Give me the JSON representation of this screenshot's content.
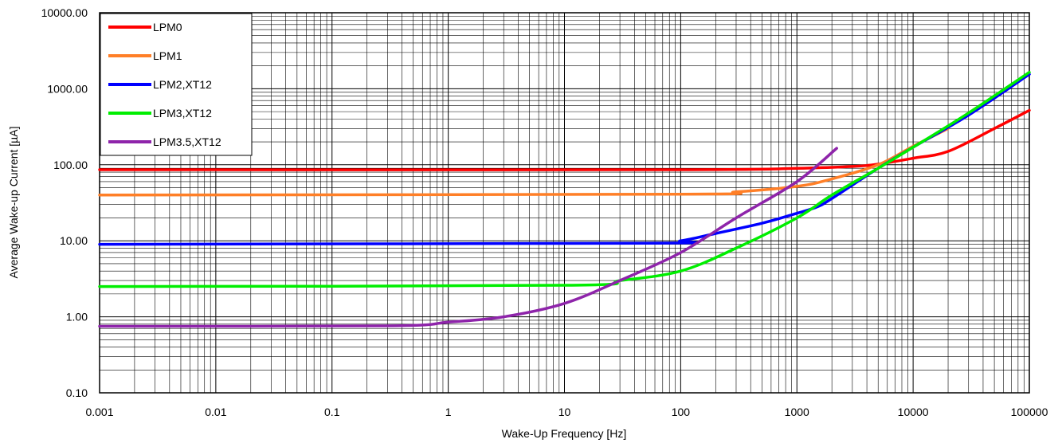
{
  "chart_data": {
    "type": "line",
    "title": "",
    "xlabel": "Wake-Up Frequency [Hz]",
    "ylabel": "Average Wake-up Current [µA]",
    "x_scale": "log",
    "y_scale": "log",
    "xlim": [
      0.001,
      100000
    ],
    "ylim": [
      0.1,
      10000
    ],
    "x_ticks": [
      "0.001",
      "0.01",
      "0.1",
      "1",
      "10",
      "100",
      "1000",
      "10000",
      "100000"
    ],
    "y_ticks": [
      "0.10",
      "1.00",
      "10.00",
      "100.00",
      "1000.00",
      "10000.00"
    ],
    "grid": true,
    "legend_position": "top-left",
    "series": [
      {
        "name": "LPM0",
        "color": "#ff0000",
        "points": [
          [
            0.001,
            86
          ],
          [
            100,
            86
          ],
          [
            1000,
            90
          ],
          [
            3000,
            95
          ],
          [
            5000,
            102
          ],
          [
            10000,
            122
          ],
          [
            20000,
            150
          ],
          [
            50000,
            300
          ],
          [
            100000,
            520
          ]
        ]
      },
      {
        "name": "LPM1",
        "color": "#ff7f27",
        "points": [
          [
            0.001,
            40
          ],
          [
            100,
            41
          ],
          [
            300,
            44
          ],
          [
            1000,
            52
          ],
          [
            2000,
            65
          ],
          [
            5000,
            100
          ],
          [
            10000,
            175
          ],
          [
            20000,
            300
          ]
        ]
      },
      {
        "name": "LPM2,XT12",
        "color": "#0000ff",
        "points": [
          [
            0.001,
            9
          ],
          [
            50,
            9.3
          ],
          [
            100,
            10
          ],
          [
            200,
            12.5
          ],
          [
            500,
            17
          ],
          [
            1000,
            23
          ],
          [
            1500,
            28
          ],
          [
            2000,
            36
          ],
          [
            5000,
            90
          ],
          [
            10000,
            170
          ],
          [
            30000,
            450
          ],
          [
            100000,
            1550
          ]
        ]
      },
      {
        "name": "LPM3,XT12",
        "color": "#00ee00",
        "points": [
          [
            0.001,
            2.5
          ],
          [
            10,
            2.6
          ],
          [
            30,
            3
          ],
          [
            100,
            4
          ],
          [
            300,
            8
          ],
          [
            1000,
            20
          ],
          [
            2000,
            40
          ],
          [
            5000,
            90
          ],
          [
            10000,
            170
          ],
          [
            30000,
            480
          ],
          [
            100000,
            1650
          ]
        ]
      },
      {
        "name": "LPM3.5,XT12",
        "color": "#8e24aa",
        "points": [
          [
            0.001,
            0.75
          ],
          [
            0.3,
            0.76
          ],
          [
            1,
            0.85
          ],
          [
            3,
            1
          ],
          [
            10,
            1.5
          ],
          [
            30,
            3
          ],
          [
            100,
            7
          ],
          [
            300,
            20
          ],
          [
            1000,
            60
          ],
          [
            2200,
            165
          ]
        ]
      }
    ]
  }
}
